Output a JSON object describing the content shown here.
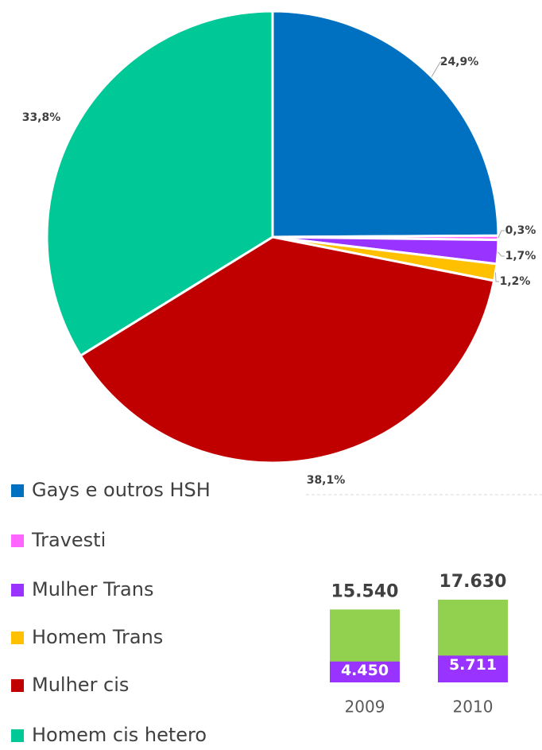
{
  "chart_data": [
    {
      "type": "pie",
      "categories": [
        "Gays e outros HSH",
        "Travesti",
        "Mulher Trans",
        "Homem Trans",
        "Mulher cis",
        "Homem cis hetero"
      ],
      "values": [
        24.9,
        0.3,
        1.7,
        1.2,
        38.1,
        33.8
      ],
      "value_labels": [
        "24,9%",
        "0,3%",
        "1,7%",
        "1,2%",
        "38,1%",
        "33,8%"
      ],
      "colors": [
        "#0070c0",
        "#ff66ff",
        "#9933ff",
        "#ffc000",
        "#c00000",
        "#00c896"
      ],
      "legend": "bottom-left"
    },
    {
      "type": "bar",
      "categories": [
        "2009",
        "2010"
      ],
      "series": [
        {
          "color": "#92d050",
          "values": [
            15540,
            17630
          ],
          "value_labels": [
            "15.540",
            "17.630"
          ]
        },
        {
          "color": "#9933ff",
          "values": [
            4450,
            5711
          ],
          "value_labels": [
            "4.450",
            "5.711"
          ]
        }
      ],
      "ylim": [
        0,
        40000
      ]
    }
  ]
}
